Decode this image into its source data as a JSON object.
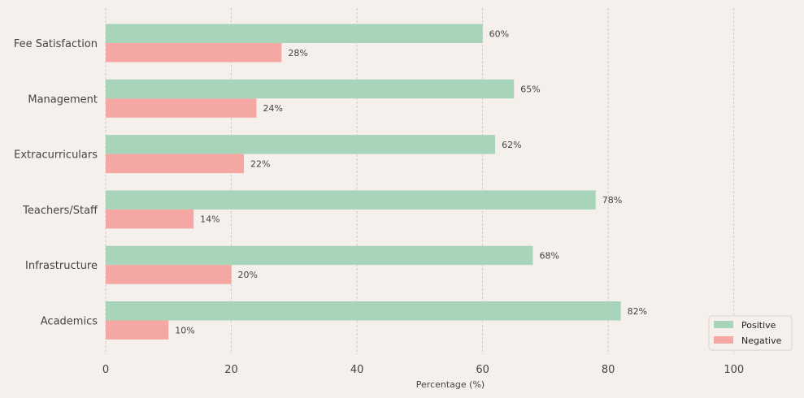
{
  "chart_data": {
    "type": "bar",
    "orientation": "horizontal",
    "categories": [
      "Fee Satisfaction",
      "Management",
      "Extracurriculars",
      "Teachers/Staff",
      "Infrastructure",
      "Academics"
    ],
    "series": [
      {
        "name": "Positive",
        "values": [
          60,
          65,
          62,
          78,
          68,
          82
        ],
        "color": "#a8d5ba"
      },
      {
        "name": "Negative",
        "values": [
          28,
          24,
          22,
          14,
          20,
          10
        ],
        "color": "#f4a7a3"
      }
    ],
    "value_suffix": "%",
    "xlabel": "Percentage (%)",
    "ylabel": "",
    "xlim": [
      0,
      110
    ],
    "xticks": [
      0,
      20,
      40,
      60,
      80,
      100
    ],
    "grid": "x-dashed",
    "legend_position": "bottom-right"
  }
}
